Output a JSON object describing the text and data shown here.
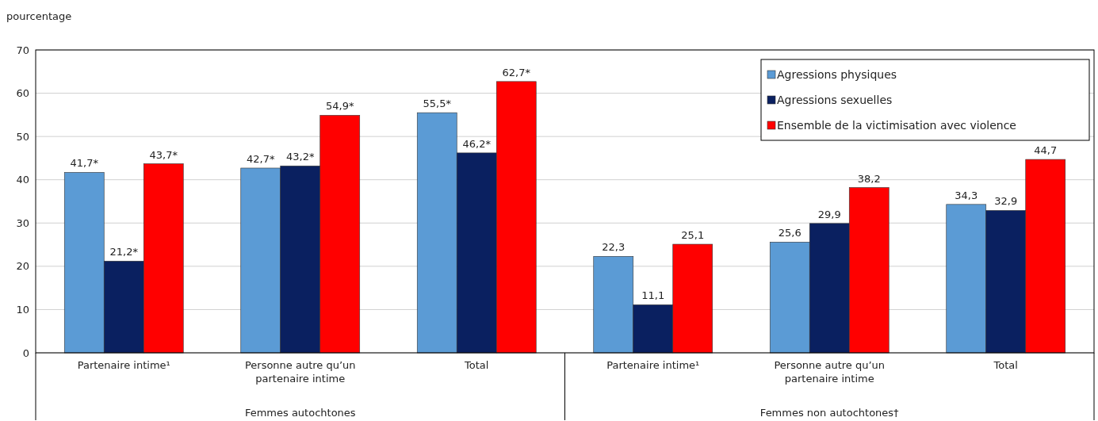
{
  "chart_data": {
    "type": "bar",
    "ylabel": "pourcentage",
    "categories": [
      "Partenaire intime¹",
      "Personne autre qu’un partenaire intime",
      "Total",
      "Partenaire intime¹",
      "Personne autre qu’un partenaire intime",
      "Total"
    ],
    "series": [
      {
        "name": "Agressions physiques",
        "color": "#5b9bd5",
        "values": [
          41.7,
          42.7,
          55.5,
          22.3,
          25.6,
          34.3
        ],
        "value_labels": [
          "41,7*",
          "42,7*",
          "55,5*",
          "22,3",
          "25,6",
          "34,3"
        ]
      },
      {
        "name": "Agressions sexuelles",
        "color": "#0a2060",
        "values": [
          21.2,
          43.2,
          46.2,
          11.1,
          29.9,
          32.9
        ],
        "value_labels": [
          "21,2*",
          "43,2*",
          "46,2*",
          "11,1",
          "29,9",
          "32,9"
        ]
      },
      {
        "name": "Ensemble de la victimisation avec violence",
        "color": "#ff0000",
        "values": [
          43.7,
          54.9,
          62.7,
          25.1,
          38.2,
          44.7
        ],
        "value_labels": [
          "43,7*",
          "54,9*",
          "62,7*",
          "25,1",
          "38,2",
          "44,7"
        ]
      }
    ],
    "annotations": [
      "Femmes autochtones",
      "Femmes non autochtones†"
    ],
    "ylim": [
      0,
      70
    ],
    "yticks": [
      0,
      10,
      20,
      30,
      40,
      50,
      60,
      70
    ],
    "grid": "y",
    "legend": "top right"
  }
}
